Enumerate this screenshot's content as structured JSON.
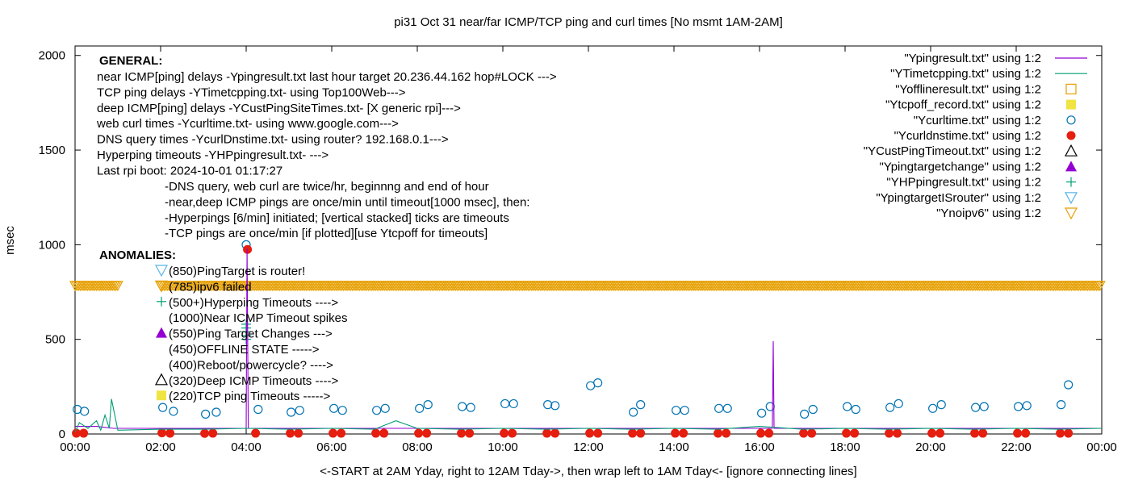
{
  "chart_data": {
    "type": "line",
    "title": "pi31 Oct 31  near/far ICMP/TCP ping and curl times [No msmt 1AM-2AM]",
    "xlabel": "<-START at 2AM Yday, right to 12AM Tday->, then wrap left to 1AM Tday<- [ignore connecting lines]",
    "ylabel": "msec",
    "xlim": [
      0,
      24
    ],
    "ylim": [
      0,
      2050
    ],
    "xticks": [
      0,
      2,
      4,
      6,
      8,
      10,
      12,
      14,
      16,
      18,
      20,
      22,
      24
    ],
    "xtick_labels": [
      "00:00",
      "02:00",
      "04:00",
      "06:00",
      "08:00",
      "10:00",
      "12:00",
      "14:00",
      "16:00",
      "18:00",
      "20:00",
      "22:00",
      "00:00"
    ],
    "yticks": [
      0,
      500,
      1000,
      1500,
      2000
    ],
    "ytick_labels": [
      "0",
      "500",
      "1000",
      "1500",
      "2000"
    ],
    "grid": false,
    "legend_position": "top-right",
    "legend": [
      {
        "label": "\"Ypingresult.txt\" using 1:2",
        "style": "line",
        "color": "#9400d3"
      },
      {
        "label": "\"YTimetcpping.txt\" using 1:2",
        "style": "line",
        "color": "#009e73"
      },
      {
        "label": "\"Yofflineresult.txt\" using 1:2",
        "style": "open-square",
        "color": "#e69f00"
      },
      {
        "label": "\"Ytcpoff_record.txt\" using 1:2",
        "style": "filled-square",
        "color": "#f0e442"
      },
      {
        "label": "\"Ycurltime.txt\" using 1:2",
        "style": "open-circle",
        "color": "#0072b2"
      },
      {
        "label": "\"Ycurldnstime.txt\" using 1:2",
        "style": "filled-circle",
        "color": "#e51e10"
      },
      {
        "label": "\"YCustPingTimeout.txt\" using 1:2",
        "style": "open-triangle",
        "color": "#000000"
      },
      {
        "label": "\"Ypingtargetchange\" using 1:2",
        "style": "filled-triangle",
        "color": "#9400d3"
      },
      {
        "label": "\"YHPpingresult.txt\" using 1:2",
        "style": "plus",
        "color": "#009e73"
      },
      {
        "label": "\"YpingtargetISrouter\" using 1:2",
        "style": "open-down-triangle",
        "color": "#56b4e9"
      },
      {
        "label": "\"Ynoipv6\" using 1:2",
        "style": "open-down-triangle",
        "color": "#e69f00"
      }
    ],
    "annotations": {
      "general_heading": "GENERAL:",
      "general_lines": [
        "near ICMP[ping] delays -Ypingresult.txt last hour target 20.236.44.162 hop#LOCK --->",
        "TCP ping delays -YTimetcpping.txt- using Top100Web--->",
        "deep ICMP[ping] delays -YCustPingSiteTimes.txt- [X generic rpi]--->",
        "web curl times -Ycurltime.txt- using www.google.com--->",
        "DNS query times -YcurlDnstime.txt- using router? 192.168.0.1--->",
        "Hyperping timeouts -YHPpingresult.txt- --->",
        "Last rpi boot: 2024-10-01 01:17:27"
      ],
      "notes_lines": [
        "-DNS query, web curl are twice/hr, beginnng and end of hour",
        "-near,deep ICMP pings are once/min until timeout[1000 msec], then:",
        "  -Hyperpings [6/min] initiated; [vertical stacked] ticks are timeouts",
        "-TCP pings are once/min [if plotted][use Ytcpoff for timeouts]"
      ],
      "anomalies_heading": "ANOMALIES:",
      "anomalies": [
        {
          "text": "(850)PingTarget is router!",
          "symbol": "open-down-triangle",
          "color": "#56b4e9"
        },
        {
          "text": "(785)ipv6 failed",
          "symbol": "open-down-triangle",
          "color": "#e69f00"
        },
        {
          "text": "(500+)Hyperping Timeouts ---->",
          "symbol": "plus",
          "color": "#009e73"
        },
        {
          "text": "(1000)Near ICMP Timeout spikes",
          "symbol": "none",
          "color": "#000000"
        },
        {
          "text": "(550)Ping Target Changes --->",
          "symbol": "filled-triangle",
          "color": "#9400d3"
        },
        {
          "text": "(450)OFFLINE STATE ----->",
          "symbol": "none",
          "color": "#000000"
        },
        {
          "text": "(400)Reboot/powercycle? ---->",
          "symbol": "none",
          "color": "#000000"
        },
        {
          "text": "(320)Deep ICMP Timeouts ---->",
          "symbol": "open-triangle",
          "color": "#000000"
        },
        {
          "text": "(220)TCP ping Timeouts ----->",
          "symbol": "filled-square",
          "color": "#f0e442"
        }
      ]
    },
    "series": [
      {
        "name": "\"Ycurltime.txt\" using 1:2",
        "marker": "open-circle",
        "color": "#0072b2",
        "x": [
          0.05,
          0.22,
          2.05,
          2.3,
          3.05,
          3.3,
          4.0,
          4.28,
          5.05,
          5.25,
          6.05,
          6.25,
          7.05,
          7.25,
          8.05,
          8.25,
          9.05,
          9.25,
          10.05,
          10.25,
          11.05,
          11.22,
          12.05,
          12.22,
          13.05,
          13.22,
          14.05,
          14.25,
          15.05,
          15.25,
          16.05,
          16.25,
          17.05,
          17.25,
          18.05,
          18.25,
          19.05,
          19.25,
          20.05,
          20.25,
          21.05,
          21.25,
          22.05,
          22.25,
          23.05,
          23.22
        ],
        "y": [
          130,
          120,
          140,
          120,
          105,
          115,
          1000,
          130,
          115,
          125,
          135,
          125,
          125,
          135,
          135,
          155,
          145,
          140,
          160,
          160,
          155,
          150,
          255,
          270,
          115,
          155,
          125,
          125,
          135,
          135,
          110,
          145,
          105,
          130,
          145,
          130,
          140,
          160,
          135,
          155,
          140,
          145,
          145,
          150,
          155,
          260
        ]
      },
      {
        "name": "\"Ycurldnstime.txt\" using 1:2",
        "marker": "filled-circle",
        "color": "#e51e10",
        "x": [
          0.03,
          0.2,
          2.03,
          2.22,
          3.03,
          3.22,
          4.03,
          4.22,
          5.03,
          5.22,
          6.03,
          6.22,
          7.03,
          7.22,
          8.03,
          8.22,
          9.03,
          9.22,
          10.03,
          10.22,
          11.03,
          11.22,
          12.03,
          12.22,
          13.03,
          13.22,
          14.03,
          14.22,
          15.03,
          15.22,
          16.03,
          16.22,
          17.03,
          17.22,
          18.03,
          18.22,
          19.03,
          19.22,
          20.03,
          20.22,
          21.03,
          21.22,
          22.03,
          22.22,
          23.03,
          23.22
        ],
        "y": [
          4,
          4,
          6,
          4,
          3,
          4,
          975,
          4,
          4,
          4,
          4,
          4,
          4,
          4,
          4,
          4,
          4,
          4,
          4,
          4,
          4,
          4,
          4,
          4,
          4,
          4,
          4,
          4,
          4,
          4,
          4,
          4,
          4,
          4,
          4,
          4,
          4,
          4,
          4,
          4,
          4,
          4,
          4,
          4,
          4,
          4
        ]
      },
      {
        "name": "\"Ynoipv6\" using 1:2",
        "marker": "open-down-triangle",
        "color": "#e69f00",
        "note": "dense run of markers at y=785 spanning 00:00-01:00 and 02:00-24:00",
        "x_ranges": [
          [
            0,
            1
          ],
          [
            2,
            24
          ]
        ],
        "y": 785
      },
      {
        "name": "\"YHPpingresult.txt\" using 1:2",
        "marker": "plus",
        "color": "#009e73",
        "x": [
          4.0,
          4.0,
          4.0,
          4.0,
          4.0
        ],
        "y": [
          500,
          520,
          540,
          560,
          580
        ]
      },
      {
        "name": "\"Ypingresult.txt\" using 1:2",
        "style": "line",
        "color": "#9400d3",
        "x": [
          0.0,
          0.5,
          0.9,
          4.0,
          4.02,
          4.05,
          4.4,
          8.0,
          12.0,
          16.0,
          16.3,
          16.32,
          16.34,
          20.0,
          24.0
        ],
        "y": [
          40,
          40,
          30,
          30,
          980,
          30,
          30,
          30,
          30,
          30,
          30,
          490,
          30,
          30,
          30
        ]
      },
      {
        "name": "\"YTimetcpping.txt\" using 1:2",
        "style": "line",
        "color": "#009e73",
        "x": [
          0.0,
          0.1,
          0.3,
          0.5,
          0.6,
          0.7,
          0.8,
          0.85,
          1.0,
          2.0,
          3.0,
          4.0,
          5.0,
          6.0,
          7.0,
          7.5,
          8.0,
          9.0,
          10.0,
          11.0,
          12.0,
          13.0,
          14.0,
          15.0,
          16.0,
          17.0,
          18.0,
          19.0,
          20.0,
          21.0,
          22.0,
          23.0,
          24.0
        ],
        "y": [
          10,
          60,
          30,
          70,
          20,
          100,
          30,
          185,
          20,
          25,
          25,
          30,
          25,
          30,
          25,
          70,
          30,
          25,
          30,
          25,
          30,
          25,
          30,
          25,
          40,
          25,
          30,
          25,
          30,
          25,
          30,
          25,
          30
        ]
      }
    ]
  }
}
